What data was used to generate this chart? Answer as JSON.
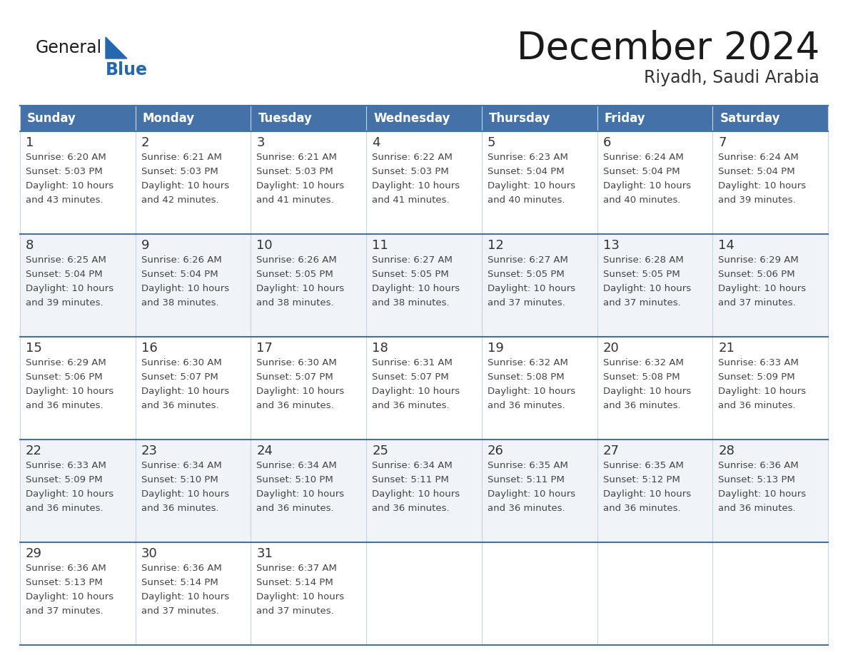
{
  "title": "December 2024",
  "subtitle": "Riyadh, Saudi Arabia",
  "days_of_week": [
    "Sunday",
    "Monday",
    "Tuesday",
    "Wednesday",
    "Thursday",
    "Friday",
    "Saturday"
  ],
  "header_bg": "#4472A8",
  "header_text": "#FFFFFF",
  "cell_bg_odd": "#FFFFFF",
  "cell_bg_even": "#F0F4F8",
  "cell_border_v": "#C8D4E0",
  "row_separator": "#4472A8",
  "day_num_color": "#333333",
  "text_color": "#444444",
  "title_color": "#1a1a1a",
  "subtitle_color": "#333333",
  "logo_general_color": "#1a1a1a",
  "logo_blue_color": "#2468B0",
  "weeks": [
    [
      {
        "day": 1,
        "sunrise": "6:20 AM",
        "sunset": "5:03 PM",
        "daylight_hours": 10,
        "daylight_minutes": 43
      },
      {
        "day": 2,
        "sunrise": "6:21 AM",
        "sunset": "5:03 PM",
        "daylight_hours": 10,
        "daylight_minutes": 42
      },
      {
        "day": 3,
        "sunrise": "6:21 AM",
        "sunset": "5:03 PM",
        "daylight_hours": 10,
        "daylight_minutes": 41
      },
      {
        "day": 4,
        "sunrise": "6:22 AM",
        "sunset": "5:03 PM",
        "daylight_hours": 10,
        "daylight_minutes": 41
      },
      {
        "day": 5,
        "sunrise": "6:23 AM",
        "sunset": "5:04 PM",
        "daylight_hours": 10,
        "daylight_minutes": 40
      },
      {
        "day": 6,
        "sunrise": "6:24 AM",
        "sunset": "5:04 PM",
        "daylight_hours": 10,
        "daylight_minutes": 40
      },
      {
        "day": 7,
        "sunrise": "6:24 AM",
        "sunset": "5:04 PM",
        "daylight_hours": 10,
        "daylight_minutes": 39
      }
    ],
    [
      {
        "day": 8,
        "sunrise": "6:25 AM",
        "sunset": "5:04 PM",
        "daylight_hours": 10,
        "daylight_minutes": 39
      },
      {
        "day": 9,
        "sunrise": "6:26 AM",
        "sunset": "5:04 PM",
        "daylight_hours": 10,
        "daylight_minutes": 38
      },
      {
        "day": 10,
        "sunrise": "6:26 AM",
        "sunset": "5:05 PM",
        "daylight_hours": 10,
        "daylight_minutes": 38
      },
      {
        "day": 11,
        "sunrise": "6:27 AM",
        "sunset": "5:05 PM",
        "daylight_hours": 10,
        "daylight_minutes": 38
      },
      {
        "day": 12,
        "sunrise": "6:27 AM",
        "sunset": "5:05 PM",
        "daylight_hours": 10,
        "daylight_minutes": 37
      },
      {
        "day": 13,
        "sunrise": "6:28 AM",
        "sunset": "5:05 PM",
        "daylight_hours": 10,
        "daylight_minutes": 37
      },
      {
        "day": 14,
        "sunrise": "6:29 AM",
        "sunset": "5:06 PM",
        "daylight_hours": 10,
        "daylight_minutes": 37
      }
    ],
    [
      {
        "day": 15,
        "sunrise": "6:29 AM",
        "sunset": "5:06 PM",
        "daylight_hours": 10,
        "daylight_minutes": 36
      },
      {
        "day": 16,
        "sunrise": "6:30 AM",
        "sunset": "5:07 PM",
        "daylight_hours": 10,
        "daylight_minutes": 36
      },
      {
        "day": 17,
        "sunrise": "6:30 AM",
        "sunset": "5:07 PM",
        "daylight_hours": 10,
        "daylight_minutes": 36
      },
      {
        "day": 18,
        "sunrise": "6:31 AM",
        "sunset": "5:07 PM",
        "daylight_hours": 10,
        "daylight_minutes": 36
      },
      {
        "day": 19,
        "sunrise": "6:32 AM",
        "sunset": "5:08 PM",
        "daylight_hours": 10,
        "daylight_minutes": 36
      },
      {
        "day": 20,
        "sunrise": "6:32 AM",
        "sunset": "5:08 PM",
        "daylight_hours": 10,
        "daylight_minutes": 36
      },
      {
        "day": 21,
        "sunrise": "6:33 AM",
        "sunset": "5:09 PM",
        "daylight_hours": 10,
        "daylight_minutes": 36
      }
    ],
    [
      {
        "day": 22,
        "sunrise": "6:33 AM",
        "sunset": "5:09 PM",
        "daylight_hours": 10,
        "daylight_minutes": 36
      },
      {
        "day": 23,
        "sunrise": "6:34 AM",
        "sunset": "5:10 PM",
        "daylight_hours": 10,
        "daylight_minutes": 36
      },
      {
        "day": 24,
        "sunrise": "6:34 AM",
        "sunset": "5:10 PM",
        "daylight_hours": 10,
        "daylight_minutes": 36
      },
      {
        "day": 25,
        "sunrise": "6:34 AM",
        "sunset": "5:11 PM",
        "daylight_hours": 10,
        "daylight_minutes": 36
      },
      {
        "day": 26,
        "sunrise": "6:35 AM",
        "sunset": "5:11 PM",
        "daylight_hours": 10,
        "daylight_minutes": 36
      },
      {
        "day": 27,
        "sunrise": "6:35 AM",
        "sunset": "5:12 PM",
        "daylight_hours": 10,
        "daylight_minutes": 36
      },
      {
        "day": 28,
        "sunrise": "6:36 AM",
        "sunset": "5:13 PM",
        "daylight_hours": 10,
        "daylight_minutes": 36
      }
    ],
    [
      {
        "day": 29,
        "sunrise": "6:36 AM",
        "sunset": "5:13 PM",
        "daylight_hours": 10,
        "daylight_minutes": 37
      },
      {
        "day": 30,
        "sunrise": "6:36 AM",
        "sunset": "5:14 PM",
        "daylight_hours": 10,
        "daylight_minutes": 37
      },
      {
        "day": 31,
        "sunrise": "6:37 AM",
        "sunset": "5:14 PM",
        "daylight_hours": 10,
        "daylight_minutes": 37
      },
      null,
      null,
      null,
      null
    ]
  ]
}
